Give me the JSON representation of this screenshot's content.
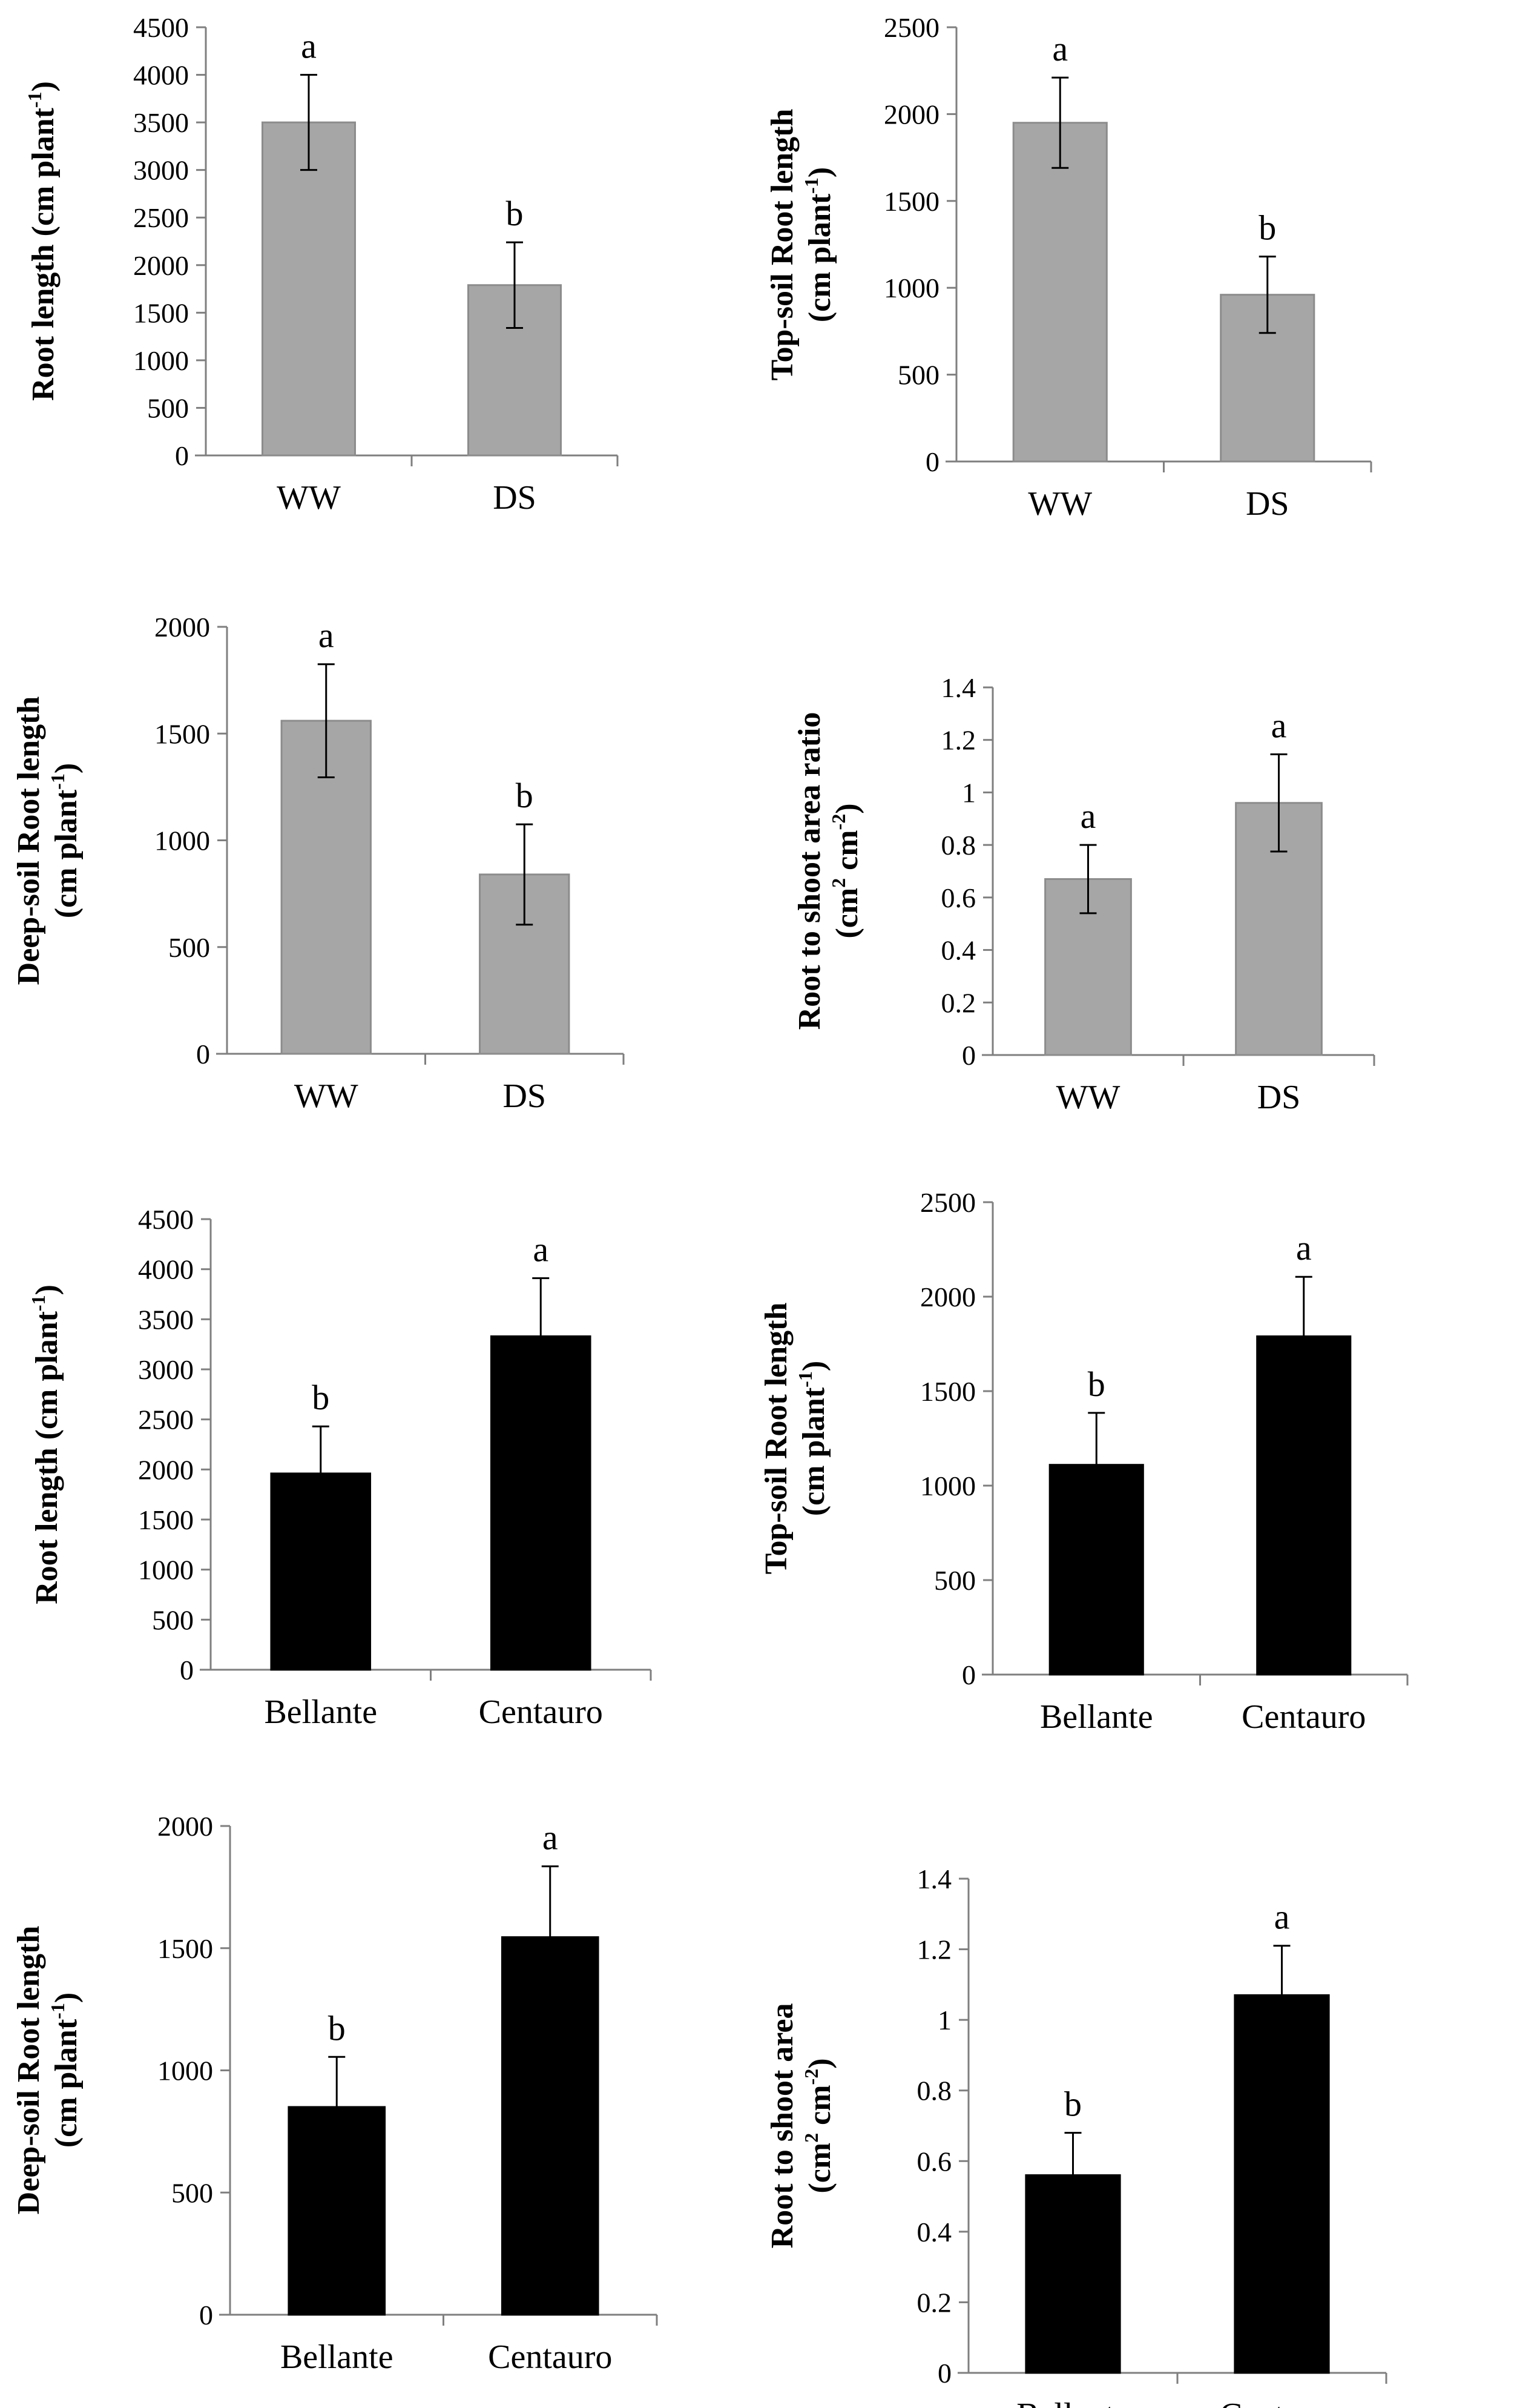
{
  "colors": {
    "treatment_bar": "#a6a6a6",
    "treatment_bar_stroke": "#8c8c8c",
    "variety_bar": "#000000",
    "axis": "#7f7f7f",
    "error_bar": "#000000"
  },
  "chart_data": [
    {
      "id": "root-length-treatment",
      "type": "bar",
      "categories": [
        "WW",
        "DS"
      ],
      "values": [
        3500,
        1790
      ],
      "errors": [
        500,
        450
      ],
      "letters": [
        "a",
        "b"
      ],
      "ylabel": [
        "Root length  (cm plant",
        "-1",
        ")"
      ],
      "ylim": [
        0,
        4500
      ],
      "yticks": [
        0,
        500,
        1000,
        1500,
        2000,
        2500,
        3000,
        3500,
        4000,
        4500
      ],
      "bar_color": "treatment"
    },
    {
      "id": "topsoil-root-length-treatment",
      "type": "bar",
      "categories": [
        "WW",
        "DS"
      ],
      "values": [
        1950,
        960
      ],
      "errors": [
        260,
        220
      ],
      "letters": [
        "a",
        "b"
      ],
      "ylabel": [
        "Top-soil Root length",
        "(cm plant",
        "-1",
        ")"
      ],
      "ylim": [
        0,
        2500
      ],
      "yticks": [
        0,
        500,
        1000,
        1500,
        2000,
        2500
      ],
      "bar_color": "treatment"
    },
    {
      "id": "deepsoil-root-length-treatment",
      "type": "bar",
      "categories": [
        "WW",
        "DS"
      ],
      "values": [
        1560,
        840
      ],
      "errors": [
        265,
        235
      ],
      "letters": [
        "a",
        "b"
      ],
      "ylabel": [
        "Deep-soil Root length",
        "(cm plant",
        "-1",
        ")"
      ],
      "ylim": [
        0,
        2000
      ],
      "yticks": [
        0,
        500,
        1000,
        1500,
        2000
      ],
      "bar_color": "treatment"
    },
    {
      "id": "root-shoot-ratio-treatment",
      "type": "bar",
      "categories": [
        "WW",
        "DS"
      ],
      "values": [
        0.67,
        0.96
      ],
      "errors": [
        0.13,
        0.185
      ],
      "letters": [
        "a",
        "a"
      ],
      "ylabel": [
        "Root to shoot area ratio",
        "(cm",
        "2",
        " cm",
        "-2",
        ")"
      ],
      "ylim": [
        0,
        1.4
      ],
      "yticks": [
        "0",
        "0.2",
        "0.4",
        "0.6",
        "0.8",
        "1",
        "1.2",
        "1.4"
      ],
      "bar_color": "treatment"
    },
    {
      "id": "root-length-variety",
      "type": "bar",
      "categories": [
        "Bellante",
        "Centauro"
      ],
      "values": [
        1960,
        3330
      ],
      "errors": [
        470,
        580
      ],
      "letters": [
        "b",
        "a"
      ],
      "ylabel": [
        "Root length  (cm plant",
        "-1",
        ")"
      ],
      "ylim": [
        0,
        4500
      ],
      "yticks": [
        0,
        500,
        1000,
        1500,
        2000,
        2500,
        3000,
        3500,
        4000,
        4500
      ],
      "bar_color": "variety"
    },
    {
      "id": "topsoil-root-length-variety",
      "type": "bar",
      "categories": [
        "Bellante",
        "Centauro"
      ],
      "values": [
        1110,
        1790
      ],
      "errors": [
        275,
        315
      ],
      "letters": [
        "b",
        "a"
      ],
      "ylabel": [
        "Top-soil Root length",
        "(cm plant",
        "-1",
        ")"
      ],
      "ylim": [
        0,
        2500
      ],
      "yticks": [
        0,
        500,
        1000,
        1500,
        2000,
        2500
      ],
      "bar_color": "variety"
    },
    {
      "id": "deepsoil-root-length-variety",
      "type": "bar",
      "categories": [
        "Bellante",
        "Centauro"
      ],
      "values": [
        850,
        1545
      ],
      "errors": [
        205,
        290
      ],
      "letters": [
        "b",
        "a"
      ],
      "ylabel": [
        "Deep-soil Root length",
        "(cm plant",
        "-1",
        ")"
      ],
      "ylim": [
        0,
        2000
      ],
      "yticks": [
        0,
        500,
        1000,
        1500,
        2000
      ],
      "bar_color": "variety"
    },
    {
      "id": "root-shoot-area-variety",
      "type": "bar",
      "categories": [
        "Bellante",
        "Centauro"
      ],
      "values": [
        0.56,
        1.07
      ],
      "errors": [
        0.12,
        0.14
      ],
      "letters": [
        "b",
        "a"
      ],
      "ylabel": [
        "Root to shoot area",
        "(cm",
        "2",
        " cm",
        "-2",
        ")"
      ],
      "ylim": [
        0,
        1.4
      ],
      "yticks": [
        "0",
        "0.2",
        "0.4",
        "0.6",
        "0.8",
        "1",
        "1.2",
        "1.4"
      ],
      "bar_color": "variety"
    }
  ]
}
